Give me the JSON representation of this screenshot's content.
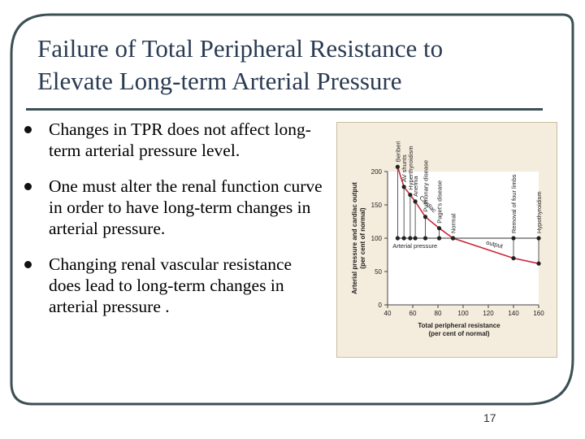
{
  "slide": {
    "title_line1": "Failure of Total Peripheral Resistance to",
    "title_line2": "Elevate Long-term Arterial Pressure",
    "bullets": [
      "Changes in TPR does not affect long-term arterial pressure level.",
      "One must alter the renal function curve in order to have long-term changes in arterial pressure.",
      "Changing renal vascular resistance does lead to long-term changes in arterial pressure ."
    ],
    "page_number": "17",
    "colors": {
      "title": "#2a3b52",
      "frame": "#3b4f55",
      "figure_bg": "#f4ecdc",
      "output_curve": "#c8283c"
    }
  },
  "chart_data": {
    "type": "line",
    "xlabel": "Total peripheral resistance",
    "xlabel_sub": "(per cent of normal)",
    "ylabel": "Arterial pressure  and cardiac output",
    "ylabel_sub": "(per cent of normal)",
    "xlim": [
      40,
      160
    ],
    "ylim": [
      0,
      200
    ],
    "xticks": [
      40,
      60,
      80,
      100,
      120,
      140,
      160
    ],
    "yticks": [
      0,
      50,
      100,
      150,
      200
    ],
    "series": [
      {
        "name": "Arterial pressure",
        "label": "Arterial pressure",
        "x": [
          48,
          53,
          58,
          62,
          70,
          81,
          92,
          140,
          160
        ],
        "y": [
          100,
          100,
          100,
          100,
          100,
          100,
          100,
          100,
          100
        ]
      },
      {
        "name": "Cardiac output",
        "label_line1": "Cardiac",
        "label_line2": "output",
        "x": [
          48,
          53,
          58,
          62,
          70,
          81,
          92,
          140,
          160
        ],
        "y": [
          207,
          177,
          165,
          155,
          132,
          115,
          100,
          70,
          62
        ]
      }
    ],
    "conditions": [
      {
        "label": "Beriberi",
        "x": 48
      },
      {
        "label": "AV shunts",
        "x": 53
      },
      {
        "label": "Hyperthyroidism",
        "x": 58
      },
      {
        "label": "Anemia",
        "x": 62
      },
      {
        "label": "Pulmonary disease",
        "x": 70
      },
      {
        "label": "Paget's disease",
        "x": 81
      },
      {
        "label": "Normal",
        "x": 92
      },
      {
        "label": "Removal of four limbs",
        "x": 140
      },
      {
        "label": "Hypothyroidism",
        "x": 160
      }
    ]
  }
}
